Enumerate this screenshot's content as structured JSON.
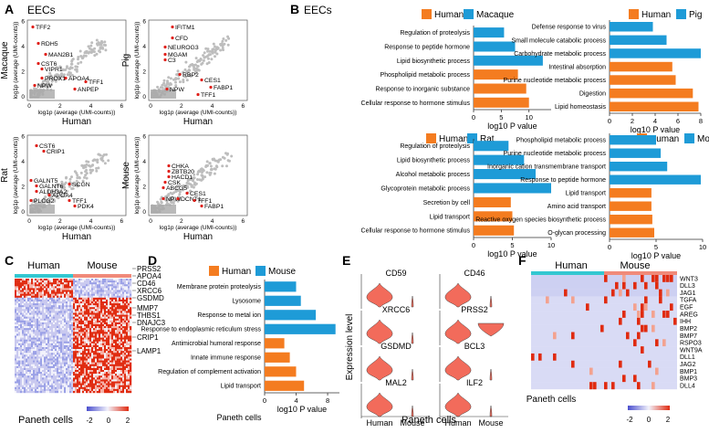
{
  "figure": {
    "panel_labels": [
      "A",
      "B",
      "C",
      "D",
      "E",
      "F"
    ],
    "colors": {
      "human": "#f47c20",
      "other": "#1e9bd7",
      "point_gray": "#bdbdbd",
      "point_red": "#e0201b",
      "cyan_bar": "#33c7d1",
      "salmon_bar": "#f08a7a",
      "violin": "#f26b5b",
      "heat_low": "#4b4fce",
      "heat_mid": "#f2f2fb",
      "heat_high": "#e02b10"
    }
  },
  "panel_a": {
    "title": "EECs",
    "scatters": [
      {
        "species": "Macaque",
        "xlabel": "Human",
        "ylabel": "log1p (average (UMI-counts))",
        "inner_xlabel": "log1p (average (UMI-counts))",
        "y_ticks": [
          "0",
          "2",
          "4",
          "6"
        ],
        "x_ticks": [
          "0",
          "2",
          "4",
          "6"
        ],
        "genes": [
          "TFF2",
          "RDH5",
          "MAN2B1",
          "CST6",
          "VIPR1",
          "PROX1",
          "NPW",
          "APOA4",
          "TFF1",
          "ANPEP"
        ]
      },
      {
        "species": "Pig",
        "xlabel": "Human",
        "ylabel": "log1p (average (UMI-counts))",
        "inner_xlabel": "log1p (average (UMI-counts))",
        "y_ticks": [
          "0",
          "2",
          "4",
          "6"
        ],
        "x_ticks": [
          "0",
          "2",
          "4",
          "6"
        ],
        "genes": [
          "IFITM1",
          "CFD",
          "NEUROG3",
          "MGAM",
          "C3",
          "RBP2",
          "CES1",
          "FABP1",
          "NPW",
          "TFF1"
        ]
      },
      {
        "species": "Rat",
        "xlabel": "Human",
        "ylabel": "log1p (average (UMI-counts))",
        "inner_xlabel": "log1p (average (UMI-counts))",
        "y_ticks": [
          "0",
          "2",
          "4",
          "6"
        ],
        "x_ticks": [
          "0",
          "2",
          "4",
          "6"
        ],
        "genes": [
          "CST6",
          "CRIP1",
          "GALNT5",
          "GALNT6",
          "ALDH3A2",
          "APOA4",
          "PLCG2",
          "SCGN",
          "TFF1",
          "PDK4"
        ]
      },
      {
        "species": "Mouse",
        "xlabel": "Human",
        "ylabel": "log1p (average (UMI-counts))",
        "inner_xlabel": "log1p (average (UMI-counts))",
        "y_ticks": [
          "0",
          "2",
          "4",
          "6"
        ],
        "x_ticks": [
          "0",
          "2",
          "4",
          "6"
        ],
        "genes": [
          "CHKA",
          "ZBTB20",
          "HACD1",
          "CSK",
          "ABCG5",
          "NPW",
          "CES1",
          "DCNT1",
          "TFF1",
          "FABP1"
        ]
      }
    ]
  },
  "panel_b": {
    "title": "EECs",
    "xlabel": "log10 P value",
    "charts": [
      {
        "human_label": "Human",
        "other_label": "Macaque",
        "ticks": [
          "0",
          "5",
          "10"
        ],
        "xlim": [
          0,
          14
        ],
        "bars": [
          {
            "label": "Regulation of proteolysis",
            "value": 5.5,
            "group": "other"
          },
          {
            "label": "Response to peptide hormone",
            "value": 7.5,
            "group": "other"
          },
          {
            "label": "Lipid biosynthetic process",
            "value": 12.5,
            "group": "other"
          },
          {
            "label": "Phospholipid metabolic process",
            "value": 8.0,
            "group": "human"
          },
          {
            "label": "Response to inorganic substance",
            "value": 9.5,
            "group": "human"
          },
          {
            "label": "Cellular response to hormone stimulus",
            "value": 10.0,
            "group": "human"
          }
        ]
      },
      {
        "human_label": "Human",
        "other_label": "Pig",
        "ticks": [
          "0",
          "2",
          "4",
          "6",
          "8"
        ],
        "xlim": [
          0,
          8
        ],
        "bars": [
          {
            "label": "Defense response to virus",
            "value": 3.8,
            "group": "other"
          },
          {
            "label": "Small molecule catabolic process",
            "value": 5.0,
            "group": "other"
          },
          {
            "label": "Carbohydrate metabolic process",
            "value": 8.0,
            "group": "other"
          },
          {
            "label": "Intestinal absorption",
            "value": 5.5,
            "group": "human"
          },
          {
            "label": "Purine nucleotide metabolic process",
            "value": 5.8,
            "group": "human"
          },
          {
            "label": "Digestion",
            "value": 7.3,
            "group": "human"
          },
          {
            "label": "Lipid homeostasis",
            "value": 7.8,
            "group": "human"
          }
        ]
      },
      {
        "human_label": "Human",
        "other_label": "Rat",
        "ticks": [
          "0",
          "5",
          "10"
        ],
        "xlim": [
          0,
          10
        ],
        "bars": [
          {
            "label": "Regulation of proteolysis",
            "value": 4.5,
            "group": "other"
          },
          {
            "label": "Lipid biosynthetic process",
            "value": 6.5,
            "group": "other"
          },
          {
            "label": "Alcohol metabolic process",
            "value": 8.0,
            "group": "other"
          },
          {
            "label": "Glycoprotein metabolic process",
            "value": 10.0,
            "group": "other"
          },
          {
            "label": "Secretion by cell",
            "value": 4.8,
            "group": "human"
          },
          {
            "label": "Lipid transport",
            "value": 5.0,
            "group": "human"
          },
          {
            "label": "Cellular response to hormone stimulus",
            "value": 5.2,
            "group": "human"
          }
        ]
      },
      {
        "human_label": "Human",
        "other_label": "Mouse",
        "ticks": [
          "0",
          "5",
          "10"
        ],
        "xlim": [
          0,
          10
        ],
        "bars": [
          {
            "label": "Phospholipid metabolic process",
            "value": 5.0,
            "group": "other"
          },
          {
            "label": "Purine nucleotide metabolic process",
            "value": 5.5,
            "group": "other"
          },
          {
            "label": "Inorganic cation transmembrane transport",
            "value": 6.2,
            "group": "other"
          },
          {
            "label": "Response to peptide hormone",
            "value": 9.8,
            "group": "other"
          },
          {
            "label": "Lipid transport",
            "value": 4.5,
            "group": "human"
          },
          {
            "label": "Amino acid transport",
            "value": 4.5,
            "group": "human"
          },
          {
            "label": "Reactive oxygen species biosynthetic process",
            "value": 4.6,
            "group": "human"
          },
          {
            "label": "O-glycan processing",
            "value": 4.8,
            "group": "human"
          }
        ]
      }
    ]
  },
  "panel_c": {
    "col_human": "Human",
    "col_mouse": "Mouse",
    "genes": [
      "PRSS2",
      "APOA4",
      "CD46",
      "XRCC6",
      "GSDMD",
      "MMP7",
      "THBS1",
      "DNAJC3",
      "CRIP1",
      "LAMP1"
    ],
    "caption": "Paneth cells",
    "legend_ticks": [
      "-2",
      "0",
      "2"
    ]
  },
  "panel_d": {
    "human_label": "Human",
    "other_label": "Mouse",
    "xlabel": "log10 P value",
    "caption": "Paneth cells",
    "ticks": [
      "0",
      "4",
      "8"
    ],
    "bars": [
      {
        "label": "Membrane protein proteolysis",
        "value": 4.0,
        "group": "other"
      },
      {
        "label": "Lysosome",
        "value": 4.6,
        "group": "other"
      },
      {
        "label": "Response to metal ion",
        "value": 6.5,
        "group": "other"
      },
      {
        "label": "Response to endoplasmic reticulum stress",
        "value": 9.0,
        "group": "other"
      },
      {
        "label": "Antimicrobial humoral response",
        "value": 2.5,
        "group": "human"
      },
      {
        "label": "Innate immune response",
        "value": 3.2,
        "group": "human"
      },
      {
        "label": "Regulation of complement activation",
        "value": 4.0,
        "group": "human"
      },
      {
        "label": "Lipid transport",
        "value": 5.0,
        "group": "human"
      }
    ]
  },
  "panel_e": {
    "ylabel": "Expression level",
    "caption": "Paneth cells",
    "xlabels": [
      "Human",
      "Mouse"
    ],
    "genes": [
      "CD59",
      "CD46",
      "XRCC6",
      "PRSS2",
      "GSDMD",
      "BCL3",
      "MAL2",
      "ILF2"
    ]
  },
  "panel_f": {
    "col_human": "Human",
    "col_mouse": "Mouse",
    "genes": [
      "WNT3",
      "DLL3",
      "JAG1",
      "TGFA",
      "EGF",
      "AREG",
      "IHH",
      "BMP2",
      "BMP7",
      "RSPO3",
      "WNT9A",
      "DLL1",
      "JAG2",
      "BMP1",
      "BMP3",
      "DLL4"
    ],
    "caption": "Paneth cells",
    "legend_ticks": [
      "-2",
      "0",
      "2"
    ]
  }
}
